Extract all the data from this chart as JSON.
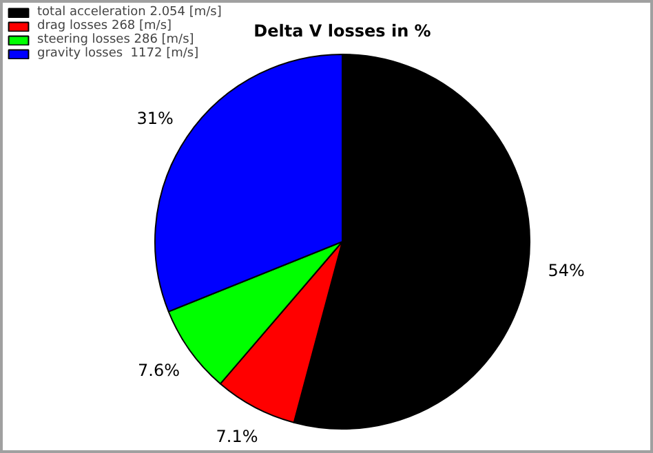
{
  "chart_data": {
    "type": "pie",
    "title": "Delta V losses in %",
    "categories": [
      "total acceleration 2.054 [m/s]",
      "drag losses 268 [m/s]",
      "steering losses 286 [m/s]",
      "gravity losses  1172 [m/s]"
    ],
    "values": [
      54,
      7.1,
      7.6,
      31
    ],
    "colors": [
      "#000000",
      "#ff0000",
      "#00ff00",
      "#0000ff"
    ],
    "value_labels": [
      "54%",
      "7.1%",
      "7.6%",
      "31%"
    ],
    "legend": "top left"
  }
}
